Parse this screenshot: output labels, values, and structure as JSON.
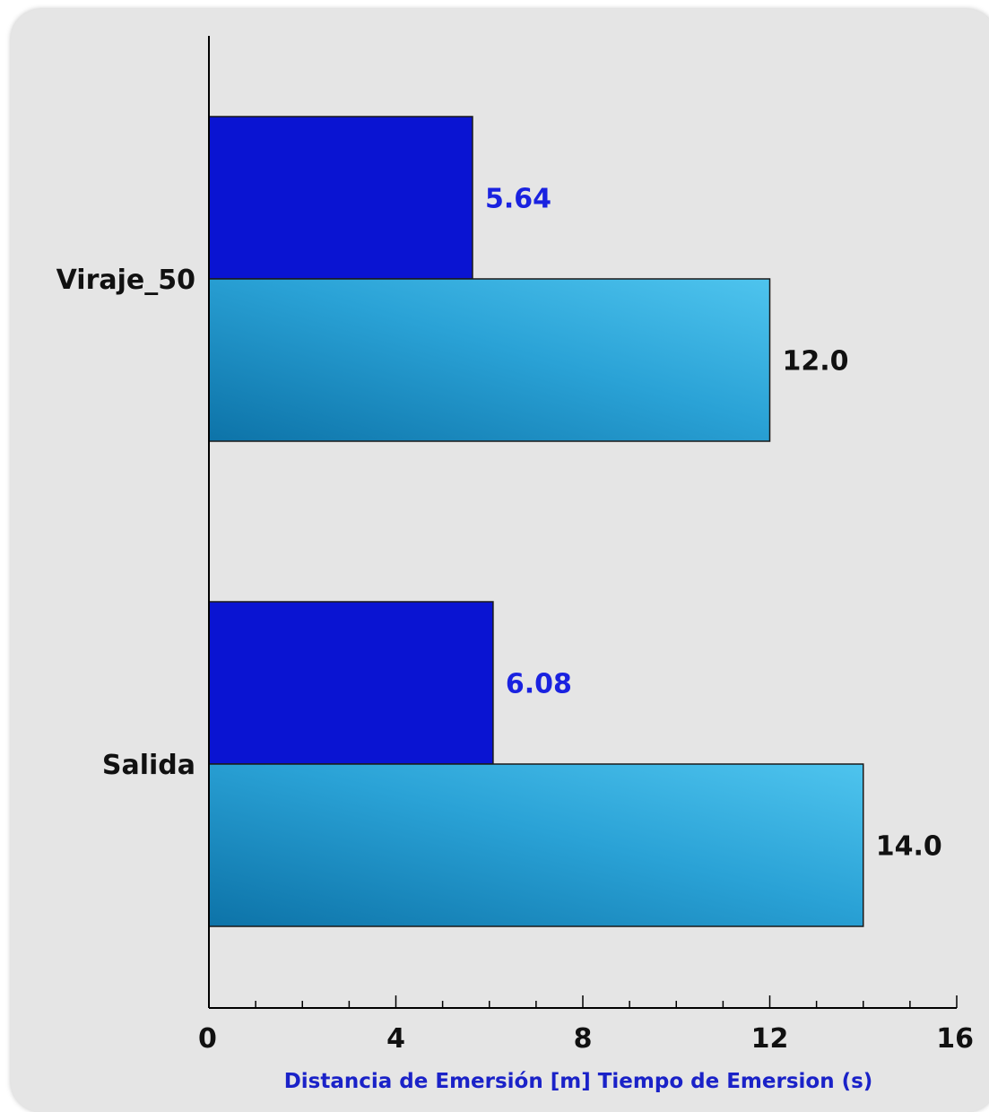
{
  "chart_data": {
    "type": "bar",
    "orientation": "horizontal",
    "categories": [
      "Viraje_50",
      "Salida"
    ],
    "series": [
      {
        "name": "Distancia de Emersión [m]",
        "values": [
          5.64,
          6.08
        ],
        "labels": [
          "5.64",
          "6.08"
        ],
        "color": "#0a14d2"
      },
      {
        "name": "Tiempo de Emersion (s)",
        "values": [
          12.0,
          14.0
        ],
        "labels": [
          "12.0",
          "14.0"
        ],
        "color": "#2fa9dc"
      }
    ],
    "xlabel": "Distancia de Emersión [m] Tiempo de Emersion (s)",
    "xlim": [
      0,
      16
    ],
    "xticks": [
      "0",
      "4",
      "8",
      "12",
      "16"
    ],
    "minor_ticks_per_major": 4,
    "grid": false,
    "legend": "none"
  }
}
